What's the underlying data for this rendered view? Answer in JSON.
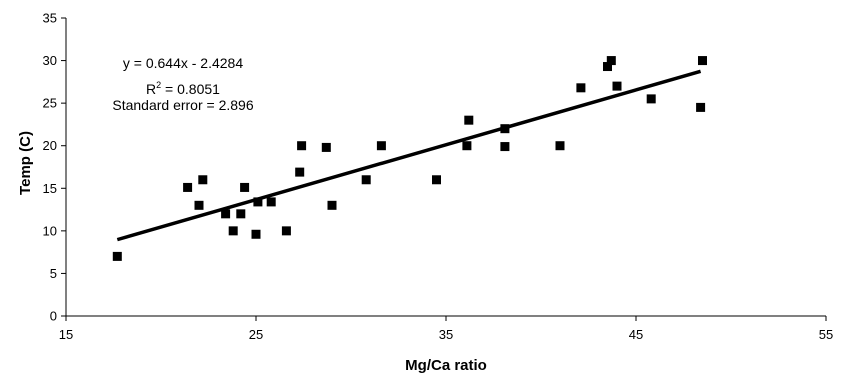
{
  "chart_data": {
    "type": "scatter",
    "title": "",
    "xlabel": "Mg/Ca ratio",
    "ylabel": "Temp (C)",
    "xlim": [
      15,
      55
    ],
    "ylim": [
      0,
      35
    ],
    "xticks": [
      15,
      25,
      35,
      45,
      55
    ],
    "yticks": [
      0,
      5,
      10,
      15,
      20,
      25,
      30,
      35
    ],
    "grid": false,
    "legend": "none",
    "marker": "square",
    "marker_color": "#000000",
    "points": [
      {
        "x": 17.7,
        "y": 7.0
      },
      {
        "x": 21.4,
        "y": 15.1
      },
      {
        "x": 22.0,
        "y": 13.0
      },
      {
        "x": 22.2,
        "y": 16.0
      },
      {
        "x": 23.4,
        "y": 12.0
      },
      {
        "x": 23.8,
        "y": 10.0
      },
      {
        "x": 24.2,
        "y": 12.0
      },
      {
        "x": 24.4,
        "y": 15.1
      },
      {
        "x": 25.0,
        "y": 9.6
      },
      {
        "x": 25.1,
        "y": 13.4
      },
      {
        "x": 25.8,
        "y": 13.4
      },
      {
        "x": 26.6,
        "y": 10.0
      },
      {
        "x": 27.3,
        "y": 16.9
      },
      {
        "x": 27.4,
        "y": 20.0
      },
      {
        "x": 28.7,
        "y": 19.8
      },
      {
        "x": 29.0,
        "y": 13.0
      },
      {
        "x": 30.8,
        "y": 16.0
      },
      {
        "x": 31.6,
        "y": 20.0
      },
      {
        "x": 34.5,
        "y": 16.0
      },
      {
        "x": 36.1,
        "y": 20.0
      },
      {
        "x": 36.2,
        "y": 23.0
      },
      {
        "x": 38.1,
        "y": 19.9
      },
      {
        "x": 38.1,
        "y": 22.0
      },
      {
        "x": 41.0,
        "y": 20.0
      },
      {
        "x": 42.1,
        "y": 26.8
      },
      {
        "x": 43.5,
        "y": 29.3
      },
      {
        "x": 43.7,
        "y": 30.0
      },
      {
        "x": 44.0,
        "y": 27.0
      },
      {
        "x": 45.8,
        "y": 25.5
      },
      {
        "x": 48.4,
        "y": 24.5
      },
      {
        "x": 48.5,
        "y": 30.0
      }
    ],
    "trendline": {
      "slope": 0.644,
      "intercept": -2.4284,
      "x_range": [
        17.7,
        48.4
      ]
    },
    "annotations": {
      "equation": "y = 0.644x - 2.4284",
      "r_squared_prefix": "R",
      "r_squared_superscript": "2",
      "r_squared_value": " = 0.8051",
      "standard_error": "Standard error = 2.896"
    }
  }
}
